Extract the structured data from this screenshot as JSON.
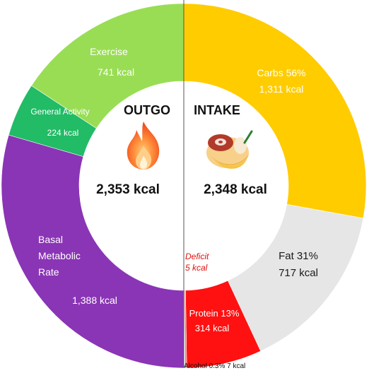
{
  "chart_data": {
    "type": "pie",
    "outgo": {
      "title": "OUTGO",
      "total": "2,353 kcal",
      "segments": [
        {
          "name": "Exercise",
          "value": 741,
          "label_value": "741 kcal",
          "color": "#99dd55"
        },
        {
          "name": "General Activity",
          "value": 224,
          "label_value": "224 kcal",
          "color": "#22bb66"
        },
        {
          "name": "Basal Metabolic Rate",
          "name_lines": [
            "Basal",
            "Metabolic",
            "Rate"
          ],
          "value": 1388,
          "label_value": "1,388 kcal",
          "color": "#8a35b5"
        }
      ]
    },
    "intake": {
      "title": "INTAKE",
      "total": "2,348 kcal",
      "segments": [
        {
          "name": "Carbs 56%",
          "value": 1311,
          "label_value": "1,311 kcal",
          "color": "#ffcc00"
        },
        {
          "name": "Fat 31%",
          "value": 717,
          "label_value": "717 kcal",
          "color": "#e6e6e6"
        },
        {
          "name": "Protein 13%",
          "value": 314,
          "label_value": "314 kcal",
          "color": "#ff1111"
        },
        {
          "name": "Alcohol 0.3%",
          "value": 7,
          "label_value": "7 kcal",
          "color": "#ff6666"
        }
      ]
    },
    "deficit": {
      "label": "Deficit",
      "value": 5,
      "label_value": "5 kcal",
      "color": "#ffffff"
    },
    "alcohol_label": "Alcohol 0.3% 7 kcal"
  },
  "icons": {
    "outgo": "flame-icon",
    "intake": "food-plate-icon"
  }
}
